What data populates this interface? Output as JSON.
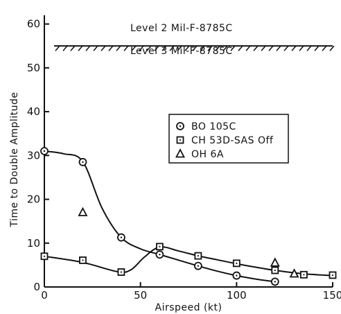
{
  "chart_data": {
    "type": "line",
    "title": "",
    "xlabel": "Airspeed (kt)",
    "ylabel": "Time to Double Amplitude",
    "xlim": [
      0,
      150
    ],
    "ylim": [
      0,
      62
    ],
    "xticks": [
      0,
      50,
      100,
      150
    ],
    "yticks": [
      0,
      10,
      20,
      30,
      40,
      50,
      60
    ],
    "grid": false,
    "legend_position": "center-right",
    "reference_line": {
      "y": 55,
      "label_above": "Level 2  Mil-F-8785C",
      "label_below": "Level 3  Mil-F-8785C"
    },
    "series": [
      {
        "name": "BO 105C",
        "marker": "circle",
        "points": [
          [
            0,
            31
          ],
          [
            20,
            28.5
          ],
          [
            40,
            11.3
          ],
          [
            60,
            7.4
          ],
          [
            80,
            4.8
          ],
          [
            100,
            2.6
          ],
          [
            120,
            1.2
          ]
        ],
        "curve": [
          [
            0,
            31
          ],
          [
            10,
            30.4
          ],
          [
            20,
            28.6
          ],
          [
            30,
            18
          ],
          [
            40,
            11.3
          ],
          [
            50,
            8.7
          ],
          [
            60,
            7.4
          ],
          [
            70,
            6.1
          ],
          [
            80,
            4.8
          ],
          [
            90,
            3.6
          ],
          [
            100,
            2.6
          ],
          [
            110,
            1.8
          ],
          [
            120,
            1.2
          ]
        ]
      },
      {
        "name": "CH 53D-SAS Off",
        "marker": "square",
        "points": [
          [
            0,
            7
          ],
          [
            20,
            6.1
          ],
          [
            40,
            3.4
          ],
          [
            60,
            9.2
          ],
          [
            80,
            7.1
          ],
          [
            100,
            5.4
          ],
          [
            120,
            3.8
          ],
          [
            135,
            2.8
          ],
          [
            150,
            2.7
          ]
        ],
        "curve": [
          [
            0,
            7
          ],
          [
            20,
            5.6
          ],
          [
            38,
            3.5
          ],
          [
            45,
            3.9
          ],
          [
            52,
            6.8
          ],
          [
            60,
            9.1
          ],
          [
            70,
            8.2
          ],
          [
            80,
            7.1
          ],
          [
            90,
            6.2
          ],
          [
            100,
            5.3
          ],
          [
            110,
            4.5
          ],
          [
            120,
            3.8
          ],
          [
            135,
            3
          ],
          [
            150,
            2.6
          ]
        ]
      },
      {
        "name": "OH 6A",
        "marker": "triangle",
        "points": [
          [
            20,
            17
          ],
          [
            120,
            5.5
          ],
          [
            130,
            3
          ]
        ]
      }
    ]
  }
}
